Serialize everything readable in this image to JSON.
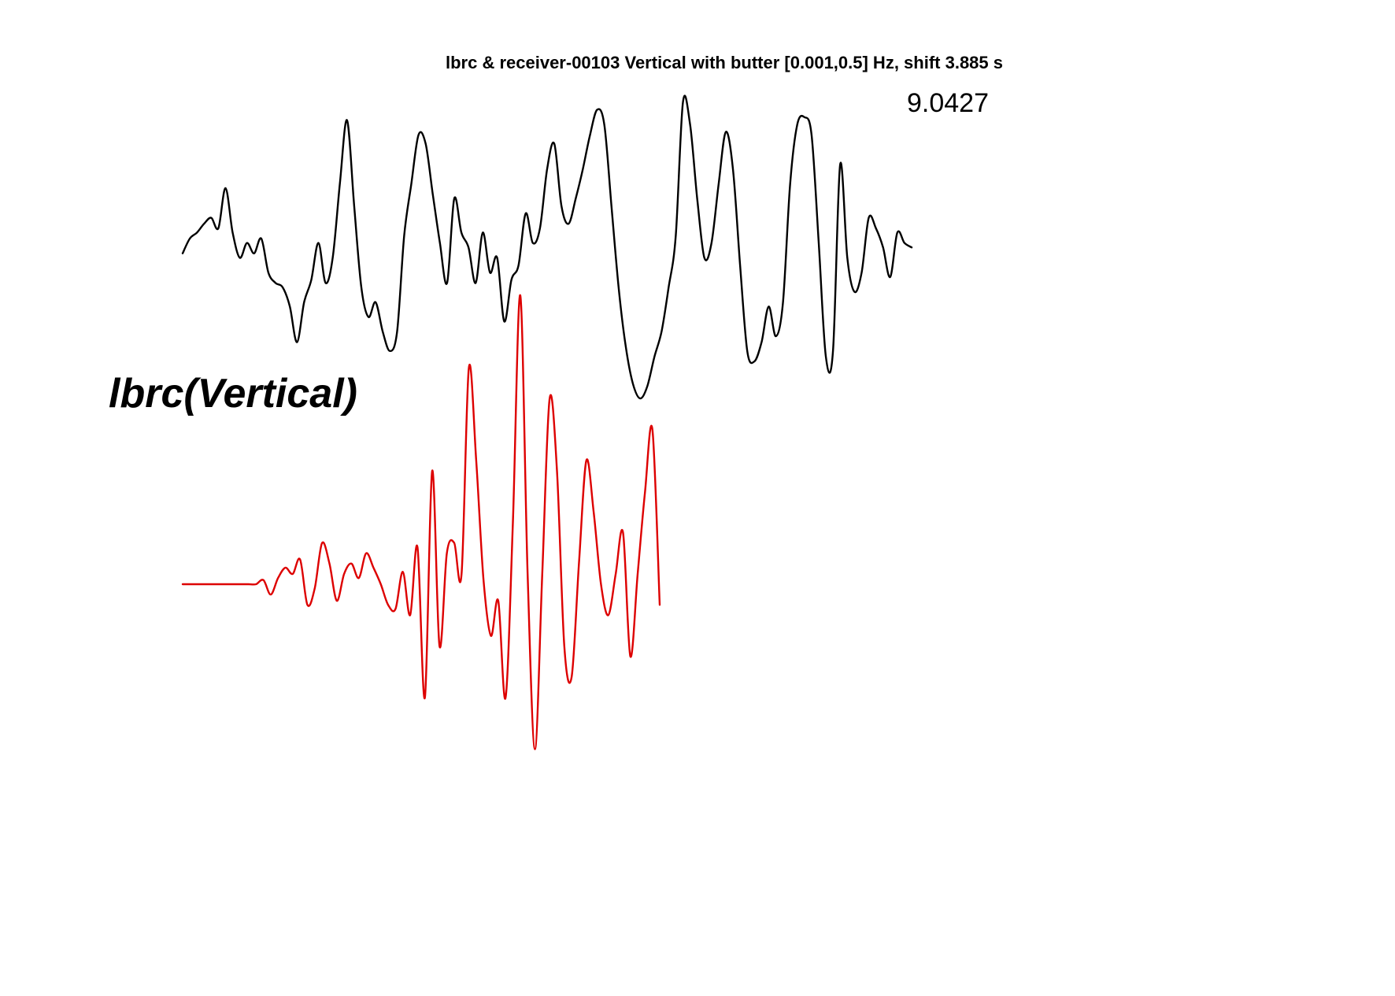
{
  "chart_data": {
    "type": "line",
    "title": "lbrc & receiver-00103 Vertical with butter [0.001,0.5] Hz, shift 3.885 s",
    "annotation": "9.0427",
    "station_label": "lbrc(Vertical)",
    "xlabel": "",
    "ylabel": "",
    "grid": false,
    "axes_visible": false,
    "series": [
      {
        "color": "#000000",
        "values": [
          -0.02,
          0.08,
          0.12,
          0.18,
          0.22,
          0.15,
          0.42,
          0.12,
          -0.05,
          0.05,
          -0.02,
          0.08,
          -0.15,
          -0.22,
          -0.25,
          -0.38,
          -0.62,
          -0.35,
          -0.2,
          0.05,
          -0.22,
          -0.05,
          0.45,
          0.88,
          0.3,
          -0.25,
          -0.45,
          -0.35,
          -0.55,
          -0.68,
          -0.55,
          0.1,
          0.45,
          0.78,
          0.72,
          0.38,
          0.05,
          -0.22,
          0.35,
          0.12,
          0.02,
          -0.22,
          0.12,
          -0.15,
          -0.05,
          -0.48,
          -0.2,
          -0.1,
          0.25,
          0.05,
          0.15,
          0.55,
          0.72,
          0.3,
          0.18,
          0.35,
          0.55,
          0.78,
          0.95,
          0.85,
          0.3,
          -0.25,
          -0.65,
          -0.9,
          -1.0,
          -0.92,
          -0.72,
          -0.55,
          -0.25,
          0.1,
          1.0,
          0.85,
          0.35,
          -0.05,
          0.05,
          0.45,
          0.8,
          0.55,
          -0.1,
          -0.68,
          -0.75,
          -0.62,
          -0.38,
          -0.58,
          -0.35,
          0.45,
          0.85,
          0.9,
          0.78,
          0.05,
          -0.72,
          -0.68,
          0.58,
          -0.05,
          -0.28,
          -0.15,
          0.22,
          0.15,
          0.02,
          -0.18,
          0.12,
          0.05,
          0.02
        ]
      },
      {
        "color": "#dd0000",
        "values": [
          0.0,
          0.0,
          0.0,
          0.0,
          0.0,
          0.0,
          0.0,
          0.0,
          0.0,
          0.0,
          0.0,
          0.02,
          -0.05,
          0.03,
          0.08,
          0.05,
          0.12,
          -0.1,
          -0.02,
          0.2,
          0.1,
          -0.08,
          0.05,
          0.1,
          0.03,
          0.15,
          0.08,
          0.0,
          -0.1,
          -0.12,
          0.06,
          -0.15,
          0.18,
          -0.55,
          0.55,
          -0.3,
          0.15,
          0.2,
          0.05,
          1.05,
          0.6,
          0.02,
          -0.25,
          -0.08,
          -0.55,
          0.3,
          1.4,
          0.05,
          -0.8,
          0.05,
          0.9,
          0.55,
          -0.3,
          -0.45,
          0.1,
          0.6,
          0.35,
          0.0,
          -0.15,
          0.05,
          0.25,
          -0.35,
          0.05,
          0.45,
          0.75,
          -0.1
        ]
      }
    ]
  }
}
